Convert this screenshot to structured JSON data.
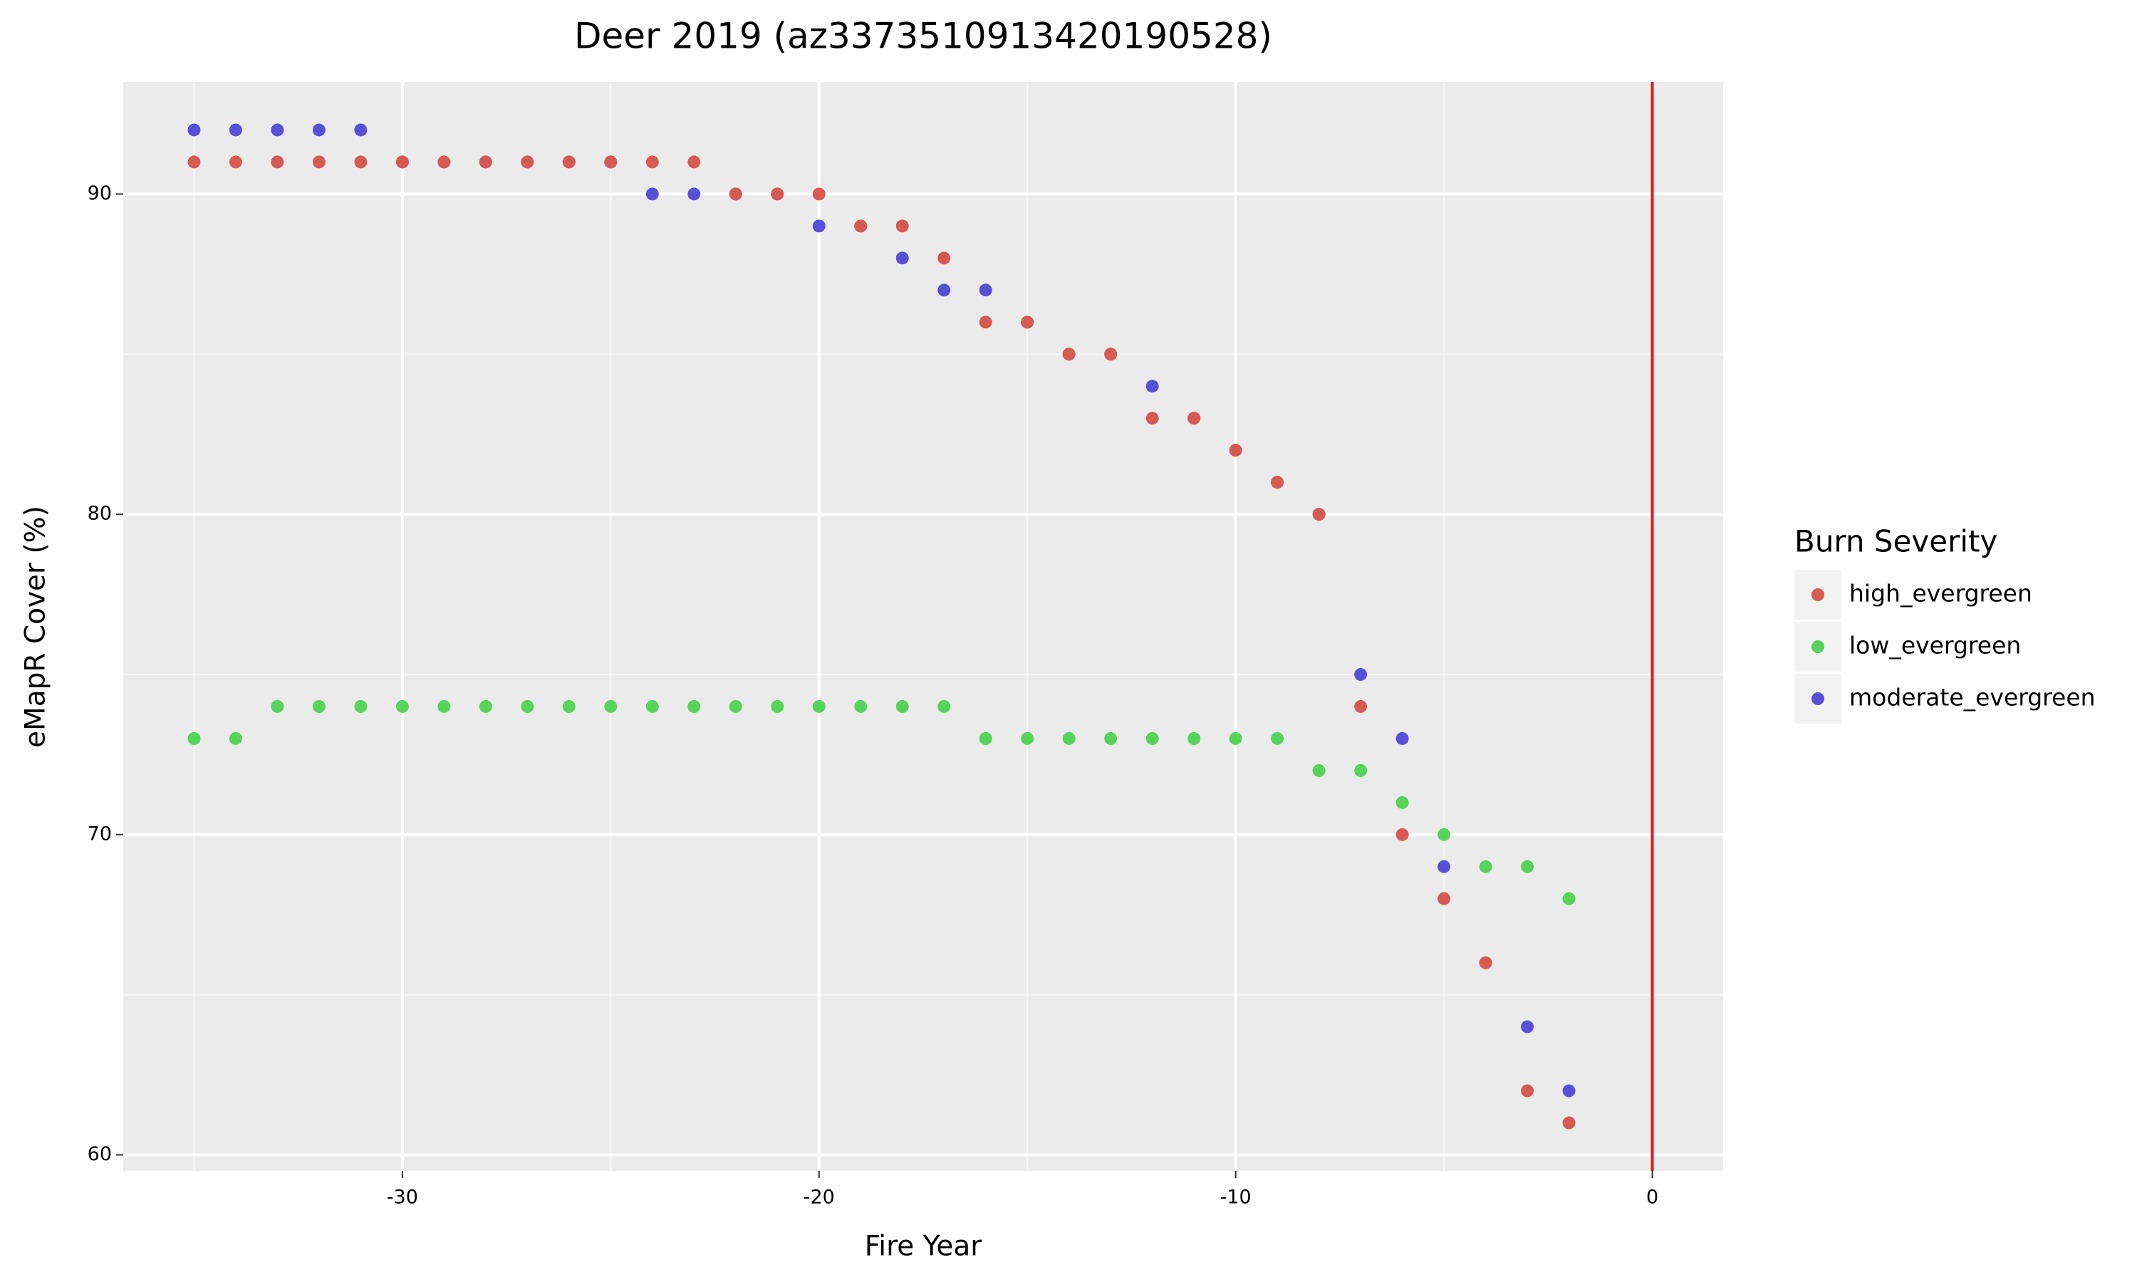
{
  "chart_data": {
    "type": "scatter",
    "title": "Deer 2019 (az3373510913420190528)",
    "x_label": "Fire Year",
    "y_label": "eMapR Cover (%)",
    "legend_title": "Burn Severity",
    "legend_position": "right",
    "x": [
      -35,
      -34,
      -33,
      -32,
      -31,
      -30,
      -29,
      -28,
      -27,
      -26,
      -25,
      -24,
      -23,
      -22,
      -21,
      -20,
      -19,
      -18,
      -17,
      -16,
      -15,
      -14,
      -13,
      -12,
      -11,
      -10,
      -9,
      -8,
      -7,
      -6,
      -5,
      -4,
      -3,
      -2
    ],
    "series": [
      {
        "name": "high_evergreen",
        "color": "#d65a54",
        "values": [
          91,
          91,
          91,
          91,
          91,
          91,
          91,
          91,
          91,
          91,
          91,
          91,
          91,
          90,
          90,
          90,
          89,
          89,
          88,
          86,
          86,
          85,
          85,
          83,
          83,
          82,
          81,
          80,
          74,
          70,
          68,
          66,
          62,
          61
        ]
      },
      {
        "name": "low_evergreen",
        "color": "#57d35c",
        "values": [
          73,
          73,
          74,
          74,
          74,
          74,
          74,
          74,
          74,
          74,
          74,
          74,
          74,
          74,
          74,
          74,
          74,
          74,
          74,
          73,
          73,
          73,
          73,
          73,
          73,
          73,
          73,
          72,
          72,
          71,
          70,
          69,
          69,
          68
        ]
      },
      {
        "name": "moderate_evergreen",
        "color": "#5a50d8",
        "values": [
          92,
          92,
          92,
          92,
          92,
          91,
          91,
          91,
          91,
          91,
          91,
          90,
          90,
          90,
          90,
          89,
          89,
          88,
          87,
          87,
          86,
          85,
          85,
          84,
          83,
          82,
          81,
          80,
          75,
          73,
          69,
          66,
          64,
          62
        ]
      }
    ],
    "xlim": [
      -36.7,
      1.7
    ],
    "ylim": [
      59.5,
      93.5
    ],
    "xticks": [
      -30,
      -20,
      -10,
      0
    ],
    "yticks": [
      60,
      70,
      80,
      90
    ],
    "xminor": [
      -35,
      -25,
      -15,
      -5
    ],
    "yminor": [
      65,
      75,
      85
    ],
    "vline": 0,
    "vline_color": "#e41a1c",
    "grid": true
  }
}
